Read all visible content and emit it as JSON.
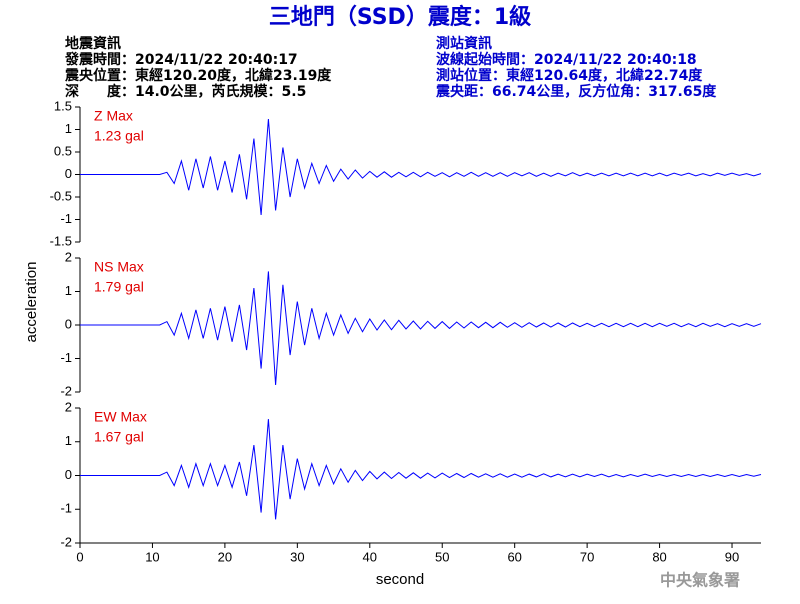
{
  "chart_data": {
    "type": "line",
    "title": "三地門（SSD）震度：1級",
    "info_left": [
      "地震資訊",
      "發震時間：2024/11/22 20:40:17",
      "震央位置：東經120.20度，北緯23.19度",
      "深　　度：14.0公里，芮氏規模：5.5"
    ],
    "info_right": [
      "測站資訊",
      "波線起始時間：2024/11/22 20:40:18",
      "測站位置：東經120.64度，北緯22.74度",
      "震央距：66.74公里，反方位角：317.65度"
    ],
    "ylabel": "acceleration",
    "xlabel": "second",
    "watermark": "中央氣象署",
    "xlim": [
      0,
      94
    ],
    "xticks": [
      0,
      10,
      20,
      30,
      40,
      50,
      60,
      70,
      80,
      90
    ],
    "x": [
      0,
      1,
      2,
      3,
      4,
      5,
      6,
      7,
      8,
      9,
      10,
      11,
      12,
      13,
      14,
      15,
      16,
      17,
      18,
      19,
      20,
      21,
      22,
      23,
      24,
      25,
      26,
      27,
      28,
      29,
      30,
      31,
      32,
      33,
      34,
      35,
      36,
      37,
      38,
      39,
      40,
      41,
      42,
      43,
      44,
      45,
      46,
      47,
      48,
      49,
      50,
      51,
      52,
      53,
      54,
      55,
      56,
      57,
      58,
      59,
      60,
      61,
      62,
      63,
      64,
      65,
      66,
      67,
      68,
      69,
      70,
      71,
      72,
      73,
      74,
      75,
      76,
      77,
      78,
      79,
      80,
      81,
      82,
      83,
      84,
      85,
      86,
      87,
      88,
      89,
      90,
      91,
      92,
      93,
      94
    ],
    "series": [
      {
        "name": "Z Max",
        "annotation": "1.23 gal",
        "color": "#0000ff",
        "ylim": [
          -1.5,
          1.5
        ],
        "yticks": [
          -1.5,
          -1,
          -0.5,
          0,
          0.5,
          1,
          1.5
        ],
        "values": [
          0,
          0,
          0,
          0,
          0,
          0,
          0,
          0,
          0,
          0,
          0,
          0,
          0.05,
          -0.2,
          0.3,
          -0.35,
          0.35,
          -0.3,
          0.4,
          -0.35,
          0.3,
          -0.4,
          0.45,
          -0.55,
          0.8,
          -0.9,
          1.23,
          -0.8,
          0.6,
          -0.5,
          0.35,
          -0.3,
          0.25,
          -0.2,
          0.2,
          -0.15,
          0.12,
          -0.1,
          0.1,
          -0.08,
          0.07,
          -0.06,
          0.06,
          -0.06,
          0.05,
          -0.05,
          0.05,
          -0.05,
          0.05,
          -0.04,
          0.04,
          -0.05,
          0.04,
          -0.04,
          0.05,
          -0.04,
          0.04,
          -0.04,
          0.04,
          -0.04,
          0.04,
          -0.03,
          0.04,
          -0.04,
          0.03,
          -0.04,
          0.03,
          -0.03,
          0.04,
          -0.03,
          0.03,
          -0.03,
          0.03,
          -0.03,
          0.03,
          -0.03,
          0.03,
          -0.03,
          0.03,
          -0.03,
          0.03,
          -0.03,
          0.03,
          -0.02,
          0.03,
          -0.03,
          0.02,
          -0.03,
          0.03,
          -0.02,
          0.03,
          -0.02,
          0.02,
          -0.03,
          0.02
        ]
      },
      {
        "name": "NS Max",
        "annotation": "1.79 gal",
        "color": "#0000ff",
        "ylim": [
          -2,
          2
        ],
        "yticks": [
          -2,
          -1,
          0,
          1,
          2
        ],
        "values": [
          0,
          0,
          0,
          0,
          0,
          0,
          0,
          0,
          0,
          0,
          0,
          0,
          0.1,
          -0.3,
          0.35,
          -0.4,
          0.45,
          -0.4,
          0.5,
          -0.45,
          0.55,
          -0.5,
          0.6,
          -0.75,
          1.1,
          -1.3,
          1.6,
          -1.79,
          1.2,
          -0.9,
          0.7,
          -0.6,
          0.5,
          -0.4,
          0.35,
          -0.3,
          0.3,
          -0.25,
          0.2,
          -0.2,
          0.18,
          -0.15,
          0.15,
          -0.14,
          0.14,
          -0.12,
          0.12,
          -0.12,
          0.11,
          -0.1,
          0.1,
          -0.1,
          0.09,
          -0.09,
          0.09,
          -0.08,
          0.08,
          -0.08,
          0.08,
          -0.07,
          0.07,
          -0.07,
          0.07,
          -0.06,
          0.06,
          -0.06,
          0.06,
          -0.06,
          0.06,
          -0.05,
          0.05,
          -0.05,
          0.05,
          -0.05,
          0.05,
          -0.05,
          0.05,
          -0.05,
          0.05,
          -0.05,
          0.05,
          -0.04,
          0.05,
          -0.05,
          0.04,
          -0.05,
          0.05,
          -0.04,
          0.04,
          -0.05,
          0.04,
          -0.04,
          0.04,
          -0.04,
          0.04
        ]
      },
      {
        "name": "EW Max",
        "annotation": "1.67 gal",
        "color": "#0000ff",
        "ylim": [
          -2,
          2
        ],
        "yticks": [
          -2,
          -1,
          0,
          1,
          2
        ],
        "values": [
          0,
          0,
          0,
          0,
          0,
          0,
          0,
          0,
          0,
          0,
          0,
          0,
          0.1,
          -0.3,
          0.3,
          -0.35,
          0.35,
          -0.3,
          0.35,
          -0.3,
          0.3,
          -0.35,
          0.4,
          -0.6,
          0.9,
          -1.1,
          1.67,
          -1.3,
          0.9,
          -0.7,
          0.5,
          -0.4,
          0.35,
          -0.3,
          0.3,
          -0.25,
          0.2,
          -0.2,
          0.15,
          -0.15,
          0.12,
          -0.1,
          0.1,
          -0.09,
          0.09,
          -0.08,
          0.08,
          -0.08,
          0.07,
          -0.07,
          0.07,
          -0.06,
          0.06,
          -0.06,
          0.06,
          -0.05,
          0.05,
          -0.05,
          0.05,
          -0.05,
          0.04,
          -0.05,
          0.04,
          -0.04,
          0.05,
          -0.04,
          0.04,
          -0.04,
          0.04,
          -0.04,
          0.04,
          -0.03,
          0.04,
          -0.04,
          0.03,
          -0.04,
          0.03,
          -0.03,
          0.04,
          -0.03,
          0.03,
          -0.03,
          0.03,
          -0.03,
          0.03,
          -0.03,
          0.03,
          -0.03,
          0.03,
          -0.03,
          0.03,
          -0.03,
          0.03,
          -0.02,
          0.03
        ]
      }
    ]
  }
}
